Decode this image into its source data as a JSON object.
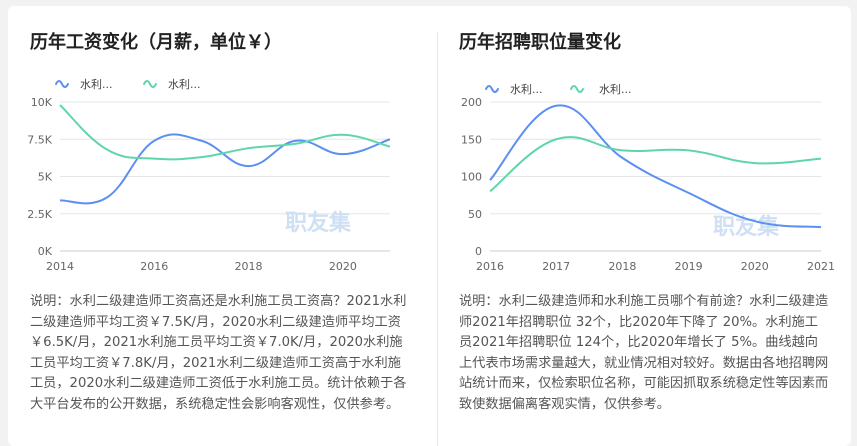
{
  "charts": [
    {
      "title": "历年工资变化（月薪，单位￥）",
      "description": "说明：水利二级建造师工资高还是水利施工员工资高？2021水利二级建造师平均工资￥7.5K/月，2020水利二级建造师平均工资￥6.5K/月，2021水利施工员平均工资￥7.0K/月，2020水利施工员平均工资￥7.8K/月，2021水利二级建造师工资高于水利施工员，2020水利二级建造师工资低于水利施工员。统计依赖于各大平台发布的公开数据，系统稳定性会影响客观性，仅供参考。",
      "watermark": "职友集",
      "colors": {
        "series1": "#5b8ff0",
        "series2": "#5fd6a9",
        "grid": "#e6e6e6",
        "axis": "#cccccc"
      },
      "chart_data": {
        "type": "line",
        "title": "历年工资变化（月薪，单位￥）",
        "xlabel": "",
        "ylabel": "",
        "x": [
          2014,
          2015,
          2016,
          2017,
          2018,
          2019,
          2020,
          2021
        ],
        "xticks": [
          2014,
          2016,
          2018,
          2020
        ],
        "ylim": [
          0,
          10000
        ],
        "yticks": [
          0,
          2500,
          5000,
          7500,
          10000
        ],
        "ytick_labels": [
          "0K",
          "2.5K",
          "5K",
          "7.5K",
          "10K"
        ],
        "series": [
          {
            "name": "水利...",
            "values": [
              3400,
              3600,
              7400,
              7400,
              5700,
              7400,
              6500,
              7500
            ]
          },
          {
            "name": "水利...",
            "values": [
              9800,
              6800,
              6200,
              6300,
              6900,
              7200,
              7800,
              7000
            ]
          }
        ]
      }
    },
    {
      "title": "历年招聘职位量变化",
      "description": "说明：水利二级建造师和水利施工员哪个有前途？水利二级建造师2021年招聘职位 32个，比2020年下降了 20%。水利施工员2021年招聘职位 124个，比2020年增长了 5%。曲线越向上代表市场需求量越大，就业情况相对较好。数据由各地招聘网站统计而来，仅检索职位名称，可能因抓取系统稳定性等因素而致使数据偏离客观实情，仅供参考。",
      "watermark": "职友集",
      "colors": {
        "series1": "#5b8ff0",
        "series2": "#5fd6a9",
        "grid": "#e6e6e6",
        "axis": "#cccccc"
      },
      "chart_data": {
        "type": "line",
        "title": "历年招聘职位量变化",
        "xlabel": "",
        "ylabel": "",
        "x": [
          2016,
          2017,
          2018,
          2019,
          2020,
          2021
        ],
        "xticks": [
          2016,
          2017,
          2018,
          2019,
          2020,
          2021
        ],
        "ylim": [
          0,
          200
        ],
        "yticks": [
          0,
          50,
          100,
          150,
          200
        ],
        "ytick_labels": [
          "0",
          "50",
          "100",
          "150",
          "200"
        ],
        "series": [
          {
            "name": "水利...",
            "values": [
              95,
              195,
              125,
              78,
              40,
              32
            ]
          },
          {
            "name": "水利...",
            "values": [
              80,
              150,
              135,
              135,
              118,
              124
            ]
          }
        ]
      }
    }
  ]
}
